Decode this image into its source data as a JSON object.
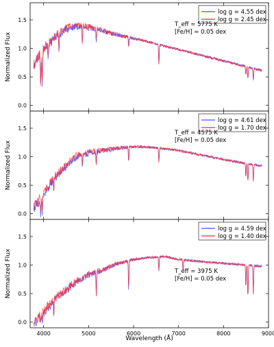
{
  "chart_data": {
    "type": "line",
    "xlabel": "Wavelength (Å)",
    "ylabel": "Normalized Flux",
    "xlim": [
      3700,
      9000
    ],
    "ylim": [
      -0.1,
      1.8
    ],
    "xticks": [
      4000,
      5000,
      6000,
      7000,
      8000,
      9000
    ],
    "yticks": [
      0.0,
      0.5,
      1.0,
      1.5
    ],
    "grid": false,
    "legend_position": "top-right",
    "panels": [
      {
        "series": [
          {
            "name": "log g = 4.55 dex",
            "color": "#4f4fff"
          },
          {
            "name": "log g = 2.45 dex",
            "color": "#ff2a2a"
          }
        ],
        "annotation": {
          "teff": "T_eff ≃ 5775 K",
          "feh": "[Fe/H] ≃  0.05 dex"
        },
        "continuum": [
          [
            3750,
            0.72
          ],
          [
            3900,
            0.95
          ],
          [
            4100,
            1.15
          ],
          [
            4300,
            1.3
          ],
          [
            4500,
            1.4
          ],
          [
            4700,
            1.45
          ],
          [
            4900,
            1.44
          ],
          [
            5200,
            1.38
          ],
          [
            5500,
            1.3
          ],
          [
            6000,
            1.2
          ],
          [
            6500,
            1.1
          ],
          [
            7000,
            1.0
          ],
          [
            7500,
            0.9
          ],
          [
            8000,
            0.8
          ],
          [
            8500,
            0.7
          ],
          [
            8850,
            0.63
          ]
        ],
        "absorption": [
          [
            3934,
            0.6
          ],
          [
            3968,
            0.6
          ],
          [
            4101,
            0.3
          ],
          [
            4340,
            0.3
          ],
          [
            4861,
            0.3
          ],
          [
            5170,
            0.2
          ],
          [
            5890,
            0.15
          ],
          [
            6563,
            0.35
          ],
          [
            8498,
            0.15
          ],
          [
            8542,
            0.2
          ],
          [
            8662,
            0.2
          ]
        ]
      },
      {
        "series": [
          {
            "name": "log g = 4.61 dex",
            "color": "#4f4fff"
          },
          {
            "name": "log g = 1.70 dex",
            "color": "#ff2a2a"
          }
        ],
        "annotation": {
          "teff": "T_eff ≃ 4575 K",
          "feh": "[Fe/H] ≃  0.05 dex"
        },
        "continuum": [
          [
            3750,
            0.15
          ],
          [
            3900,
            0.3
          ],
          [
            4100,
            0.55
          ],
          [
            4300,
            0.75
          ],
          [
            4500,
            0.9
          ],
          [
            4700,
            1.05
          ],
          [
            5000,
            1.12
          ],
          [
            5300,
            1.15
          ],
          [
            5600,
            1.18
          ],
          [
            6000,
            1.2
          ],
          [
            6500,
            1.18
          ],
          [
            7000,
            1.13
          ],
          [
            7500,
            1.05
          ],
          [
            8000,
            0.97
          ],
          [
            8500,
            0.9
          ],
          [
            8850,
            0.86
          ]
        ],
        "absorption": [
          [
            3934,
            0.3
          ],
          [
            3968,
            0.3
          ],
          [
            4226,
            0.2
          ],
          [
            4861,
            0.2
          ],
          [
            5170,
            0.25
          ],
          [
            5890,
            0.25
          ],
          [
            6563,
            0.25
          ],
          [
            8498,
            0.25
          ],
          [
            8542,
            0.3
          ],
          [
            8662,
            0.3
          ]
        ]
      },
      {
        "series": [
          {
            "name": "log g = 4.59 dex",
            "color": "#4f4fff"
          },
          {
            "name": "log g = 1.40 dex",
            "color": "#ff2a2a"
          }
        ],
        "annotation": {
          "teff": "T_eff ≃ 3975 K",
          "feh": "[Fe/H] ≃  0.05 dex"
        },
        "continuum": [
          [
            3750,
            0.05
          ],
          [
            3900,
            0.15
          ],
          [
            4100,
            0.35
          ],
          [
            4300,
            0.5
          ],
          [
            4500,
            0.62
          ],
          [
            4700,
            0.75
          ],
          [
            5000,
            0.88
          ],
          [
            5300,
            0.95
          ],
          [
            5600,
            1.05
          ],
          [
            6000,
            1.12
          ],
          [
            6300,
            1.15
          ],
          [
            6700,
            1.17
          ],
          [
            7000,
            1.12
          ],
          [
            7500,
            1.08
          ],
          [
            8000,
            1.05
          ],
          [
            8500,
            1.02
          ],
          [
            8850,
            1.0
          ]
        ],
        "absorption": [
          [
            3934,
            0.1
          ],
          [
            3968,
            0.1
          ],
          [
            4226,
            0.25
          ],
          [
            5170,
            0.4
          ],
          [
            5890,
            0.5
          ],
          [
            6563,
            0.25
          ],
          [
            7100,
            0.2
          ],
          [
            8498,
            0.4
          ],
          [
            8542,
            0.55
          ],
          [
            8662,
            0.5
          ]
        ]
      }
    ]
  }
}
